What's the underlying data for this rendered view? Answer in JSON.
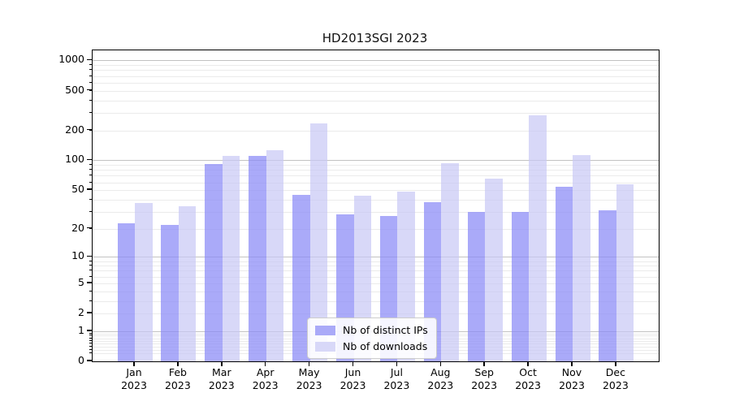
{
  "chart_data": {
    "type": "bar",
    "title": "HD2013SGI 2023",
    "scale": "log1p",
    "grid": true,
    "categories": [
      "Jan",
      "Feb",
      "Mar",
      "Apr",
      "May",
      "Jun",
      "Jul",
      "Aug",
      "Sep",
      "Oct",
      "Nov",
      "Dec"
    ],
    "category_year": "2023",
    "series": [
      {
        "name": "Nb of distinct IPs",
        "color": "#aaaaf8",
        "bar_fill": "rgba(137,137,246,0.72)",
        "values": [
          23,
          22,
          92,
          110,
          45,
          28,
          27,
          38,
          30,
          30,
          54,
          31
        ]
      },
      {
        "name": "Nb of downloads",
        "color": "#d8d8f8",
        "bar_fill": "rgba(199,199,245,0.70)",
        "values": [
          37,
          34,
          111,
          127,
          235,
          44,
          48,
          94,
          65,
          283,
          113,
          57
        ]
      }
    ],
    "y_ticks": [
      0,
      1,
      2,
      5,
      10,
      20,
      50,
      100,
      200,
      500,
      1000
    ],
    "ylim": [
      0,
      1250
    ],
    "legend_position": "lower center",
    "grid_major_color": "#c2c2c2",
    "grid_minor_color": "#ebebeb",
    "axis_color": "#000000",
    "background_color": "#ffffff"
  }
}
